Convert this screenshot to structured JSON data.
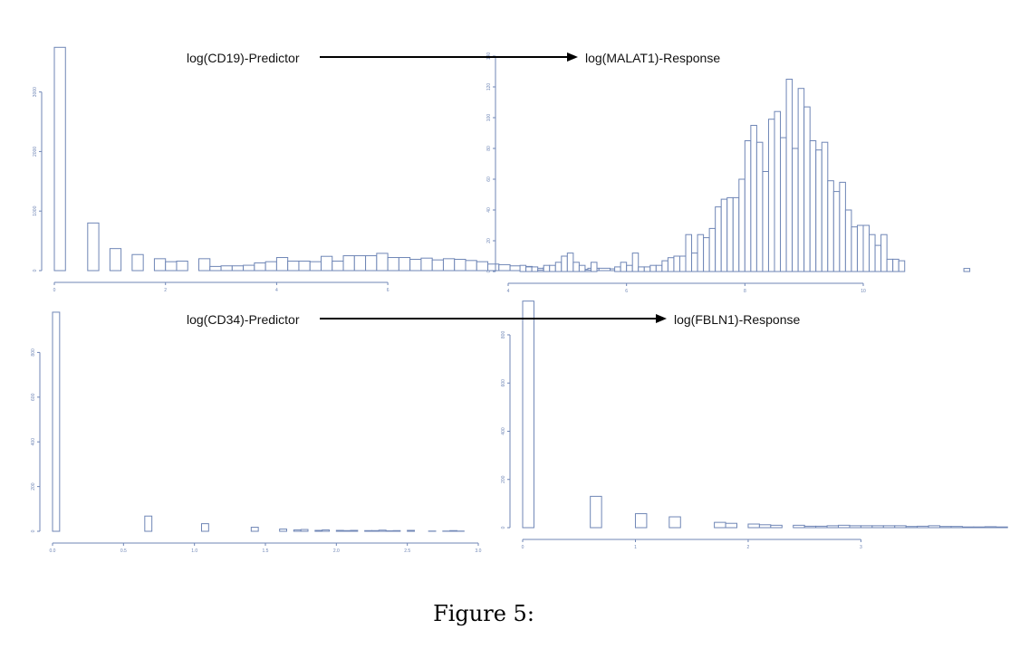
{
  "caption": "Figure 5:",
  "arrows": [
    {
      "from_label": "log(CD19)-Predictor",
      "to_label": "log(MALAT1)-Response"
    },
    {
      "from_label": "log(CD34)-Predictor",
      "to_label": "log(FBLN1)-Response"
    }
  ],
  "chart_data": [
    {
      "type": "bar",
      "name": "log(CD19)",
      "xlim": [
        0,
        7.4
      ],
      "ylim": [
        0,
        3800
      ],
      "xticks": [
        0,
        2,
        4,
        6
      ],
      "yticks": [
        0,
        1000,
        2000,
        3000
      ],
      "bin_width": 0.2,
      "bin_start": 0,
      "values": [
        3750,
        0,
        0,
        800,
        0,
        370,
        0,
        270,
        0,
        200,
        150,
        160,
        0,
        200,
        70,
        80,
        80,
        90,
        130,
        150,
        220,
        160,
        160,
        150,
        240,
        160,
        250,
        250,
        250,
        290,
        220,
        220,
        190,
        210,
        180,
        200,
        190,
        170,
        150,
        110,
        100,
        80,
        70,
        40,
        50,
        40,
        40,
        20,
        40,
        40,
        30,
        20,
        30,
        10,
        0,
        20
      ]
    },
    {
      "type": "bar",
      "name": "log(MALAT1)",
      "xlim": [
        4,
        11.5
      ],
      "ylim": [
        0,
        140
      ],
      "xticks": [
        4,
        6,
        8,
        10
      ],
      "yticks": [
        0,
        20,
        40,
        60,
        80,
        100,
        120,
        140
      ],
      "bin_width": 0.1,
      "bin_start": 4.2,
      "values": [
        4,
        3,
        3,
        1,
        4,
        4,
        6,
        10,
        12,
        6,
        4,
        1,
        6,
        0,
        0,
        0,
        3,
        6,
        4,
        12,
        3,
        3,
        4,
        4,
        7,
        9,
        10,
        10,
        24,
        12,
        24,
        22,
        28,
        42,
        47,
        48,
        48,
        60,
        85,
        95,
        84,
        65,
        99,
        104,
        87,
        125,
        80,
        119,
        107,
        85,
        79,
        84,
        59,
        52,
        58,
        40,
        29,
        30,
        30,
        24,
        17,
        24,
        8,
        8,
        7,
        0,
        0,
        0,
        0,
        0,
        0,
        0,
        0,
        0,
        0,
        2
      ]
    },
    {
      "type": "bar",
      "name": "log(CD34)",
      "xlim": [
        0,
        3.0
      ],
      "ylim": [
        0,
        1000
      ],
      "xticks": [
        0,
        0.5,
        1.0,
        1.5,
        2.0,
        2.5,
        3.0
      ],
      "xtick_labels": [
        "0.0",
        "0.5",
        "1.0",
        "1.5",
        "2.0",
        "2.5",
        "3.0"
      ],
      "yticks": [
        0,
        200,
        400,
        600,
        800
      ],
      "bin_width": 0.05,
      "bin_start": 0,
      "values": [
        980,
        0,
        0,
        0,
        0,
        0,
        0,
        0,
        0,
        0,
        0,
        0,
        0,
        68,
        0,
        0,
        0,
        0,
        0,
        0,
        0,
        34,
        0,
        0,
        0,
        0,
        0,
        0,
        18,
        0,
        0,
        0,
        10,
        0,
        6,
        8,
        0,
        4,
        6,
        0,
        4,
        3,
        4,
        0,
        3,
        3,
        5,
        2,
        3,
        0,
        4,
        0,
        0,
        1,
        0,
        1,
        3,
        1,
        0,
        0
      ]
    },
    {
      "type": "bar",
      "name": "log(FBLN1)",
      "xlim": [
        0,
        3.8
      ],
      "ylim": [
        0,
        950
      ],
      "xticks": [
        0,
        1,
        2,
        3
      ],
      "yticks": [
        0,
        200,
        400,
        600,
        800
      ],
      "bin_width": 0.1,
      "bin_start": 0,
      "values": [
        940,
        0,
        0,
        0,
        0,
        0,
        130,
        0,
        0,
        0,
        58,
        0,
        0,
        45,
        0,
        0,
        0,
        22,
        18,
        0,
        15,
        12,
        10,
        0,
        10,
        6,
        6,
        8,
        10,
        8,
        8,
        8,
        8,
        8,
        5,
        6,
        8,
        5,
        5,
        3,
        3,
        4,
        3
      ]
    }
  ]
}
